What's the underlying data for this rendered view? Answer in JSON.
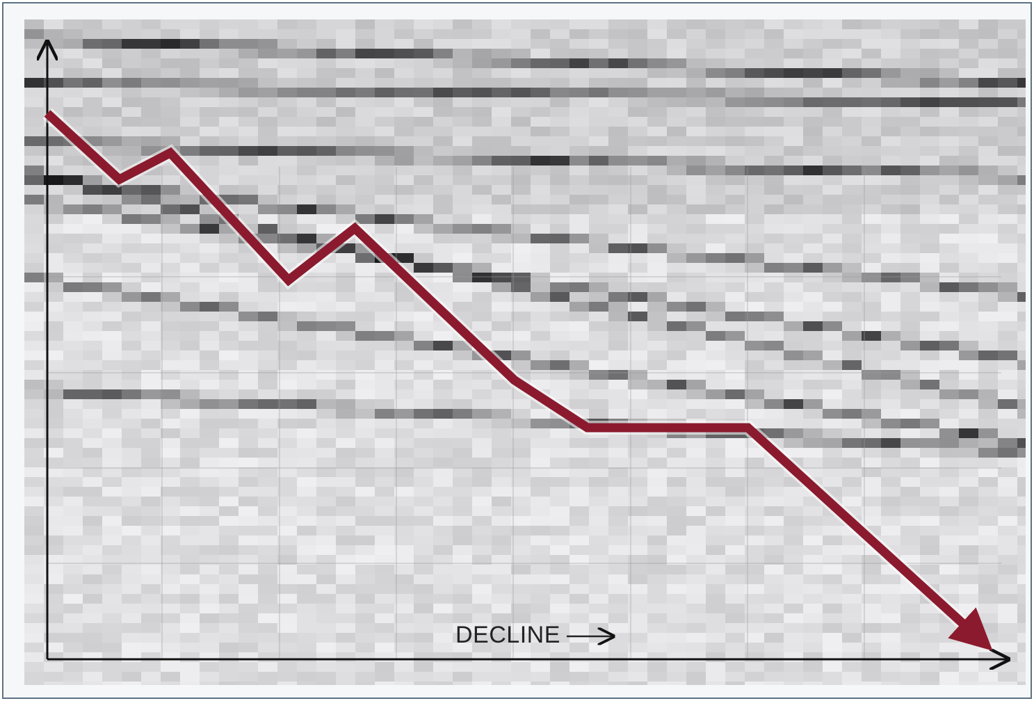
{
  "chart_data": {
    "type": "line",
    "annotation": "DECLINE",
    "x": [
      0,
      7.5,
      12.8,
      25.1,
      32.0,
      48.6,
      56.2,
      72.9,
      97.1
    ],
    "values": [
      88.4,
      77.7,
      82.0,
      61.4,
      69.8,
      45.2,
      37.5,
      37.5,
      3.2
    ],
    "color": "#8b1a2e",
    "xlim": [
      0,
      100
    ],
    "ylim": [
      0,
      100
    ]
  }
}
